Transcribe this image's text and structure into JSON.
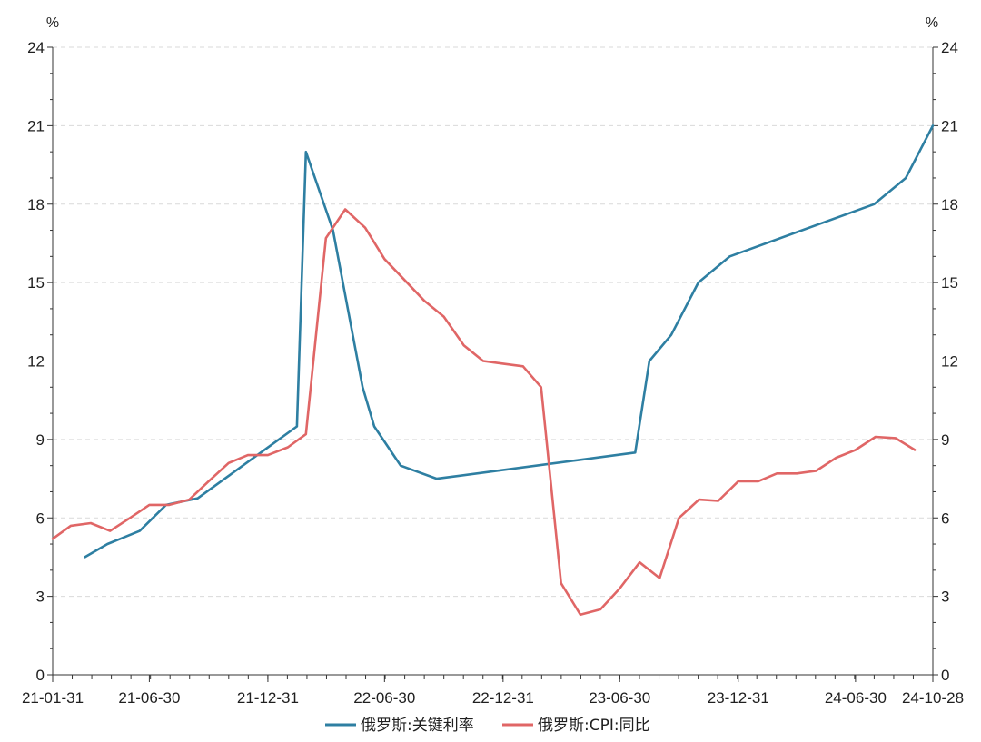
{
  "chart_data": {
    "type": "line",
    "y_unit_left": "%",
    "y_unit_right": "%",
    "ylim": [
      0,
      24
    ],
    "y_ticks": [
      0,
      3,
      6,
      9,
      12,
      15,
      18,
      21,
      24
    ],
    "x_tick_labels": [
      "21-01-31",
      "21-06-30",
      "21-12-31",
      "22-06-30",
      "22-12-31",
      "23-06-30",
      "23-12-31",
      "24-06-30",
      "24-10-28"
    ],
    "xlim": [
      "2021-01-31",
      "2024-10-28"
    ],
    "grid": "horizontal dashed",
    "legend_position": "bottom-center",
    "series": [
      {
        "name": "俄罗斯:关键利率",
        "color": "#2e7fa2",
        "points": [
          [
            "2021-03-22",
            4.5
          ],
          [
            "2021-04-26",
            5.0
          ],
          [
            "2021-06-15",
            5.5
          ],
          [
            "2021-07-26",
            6.5
          ],
          [
            "2021-09-13",
            6.75
          ],
          [
            "2021-10-25",
            7.5
          ],
          [
            "2021-12-20",
            8.5
          ],
          [
            "2022-02-14",
            9.5
          ],
          [
            "2022-02-28",
            20.0
          ],
          [
            "2022-04-11",
            17.0
          ],
          [
            "2022-05-04",
            14.0
          ],
          [
            "2022-05-27",
            11.0
          ],
          [
            "2022-06-14",
            9.5
          ],
          [
            "2022-07-25",
            8.0
          ],
          [
            "2022-09-19",
            7.5
          ],
          [
            "2023-07-24",
            8.5
          ],
          [
            "2023-08-15",
            12.0
          ],
          [
            "2023-09-18",
            13.0
          ],
          [
            "2023-10-30",
            15.0
          ],
          [
            "2023-12-18",
            16.0
          ],
          [
            "2024-07-29",
            18.0
          ],
          [
            "2024-09-16",
            19.0
          ],
          [
            "2024-10-28",
            21.0
          ]
        ]
      },
      {
        "name": "俄罗斯:CPI:同比",
        "color": "#e06666",
        "points": [
          [
            "2021-01-31",
            5.2
          ],
          [
            "2021-02-28",
            5.7
          ],
          [
            "2021-03-31",
            5.8
          ],
          [
            "2021-04-30",
            5.5
          ],
          [
            "2021-05-31",
            6.0
          ],
          [
            "2021-06-30",
            6.5
          ],
          [
            "2021-07-31",
            6.5
          ],
          [
            "2021-08-31",
            6.7
          ],
          [
            "2021-09-30",
            7.4
          ],
          [
            "2021-10-31",
            8.1
          ],
          [
            "2021-11-30",
            8.4
          ],
          [
            "2021-12-31",
            8.4
          ],
          [
            "2022-01-31",
            8.7
          ],
          [
            "2022-02-28",
            9.2
          ],
          [
            "2022-03-31",
            16.7
          ],
          [
            "2022-04-30",
            17.8
          ],
          [
            "2022-05-31",
            17.1
          ],
          [
            "2022-06-30",
            15.9
          ],
          [
            "2022-07-31",
            15.1
          ],
          [
            "2022-08-31",
            14.3
          ],
          [
            "2022-09-30",
            13.7
          ],
          [
            "2022-10-31",
            12.6
          ],
          [
            "2022-11-30",
            12.0
          ],
          [
            "2022-12-31",
            11.9
          ],
          [
            "2023-01-31",
            11.8
          ],
          [
            "2023-02-28",
            11.0
          ],
          [
            "2023-03-31",
            3.5
          ],
          [
            "2023-04-30",
            2.3
          ],
          [
            "2023-05-31",
            2.5
          ],
          [
            "2023-06-30",
            3.3
          ],
          [
            "2023-07-31",
            4.3
          ],
          [
            "2023-08-31",
            3.7
          ],
          [
            "2023-09-30",
            6.0
          ],
          [
            "2023-10-31",
            6.7
          ],
          [
            "2023-11-30",
            6.65
          ],
          [
            "2023-12-31",
            7.4
          ],
          [
            "2024-01-31",
            7.4
          ],
          [
            "2024-02-29",
            7.7
          ],
          [
            "2024-03-31",
            7.7
          ],
          [
            "2024-04-30",
            7.8
          ],
          [
            "2024-05-31",
            8.3
          ],
          [
            "2024-06-30",
            8.6
          ],
          [
            "2024-07-31",
            9.1
          ],
          [
            "2024-08-31",
            9.05
          ],
          [
            "2024-09-30",
            8.6
          ]
        ]
      }
    ]
  }
}
